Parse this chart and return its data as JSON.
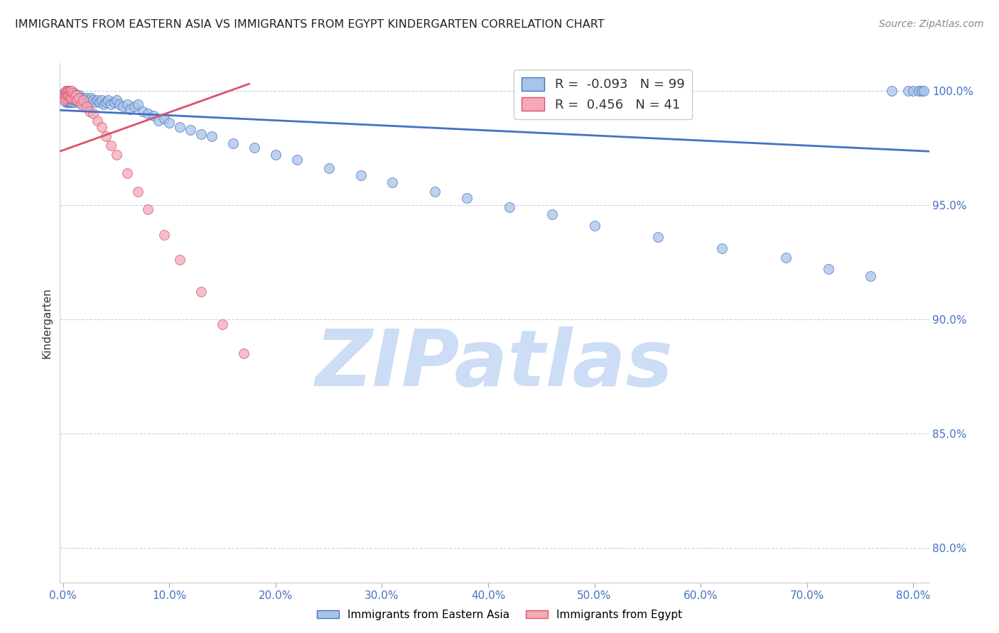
{
  "title": "IMMIGRANTS FROM EASTERN ASIA VS IMMIGRANTS FROM EGYPT KINDERGARTEN CORRELATION CHART",
  "source": "Source: ZipAtlas.com",
  "xlabel_ticks": [
    "0.0%",
    "10.0%",
    "20.0%",
    "30.0%",
    "40.0%",
    "50.0%",
    "60.0%",
    "70.0%",
    "80.0%"
  ],
  "xlabel_vals": [
    0.0,
    0.1,
    0.2,
    0.3,
    0.4,
    0.5,
    0.6,
    0.7,
    0.8
  ],
  "ylabel": "Kindergarten",
  "ylabel_right_ticks": [
    1.0,
    0.95,
    0.9,
    0.85,
    0.8
  ],
  "ylabel_right_labels": [
    "100.0%",
    "95.0%",
    "90.0%",
    "85.0%",
    "80.0%"
  ],
  "ylim": [
    0.785,
    1.012
  ],
  "xlim": [
    -0.003,
    0.815
  ],
  "blue_R": -0.093,
  "blue_N": 99,
  "pink_R": 0.456,
  "pink_N": 41,
  "blue_color": "#a8c4e8",
  "pink_color": "#f4a8b8",
  "blue_line_color": "#4472c4",
  "pink_line_color": "#d9536a",
  "watermark": "ZIPatlas",
  "watermark_color": "#ccddf5",
  "blue_x": [
    0.001,
    0.001,
    0.002,
    0.002,
    0.003,
    0.003,
    0.003,
    0.004,
    0.004,
    0.004,
    0.005,
    0.005,
    0.005,
    0.006,
    0.006,
    0.006,
    0.007,
    0.007,
    0.007,
    0.008,
    0.008,
    0.008,
    0.009,
    0.009,
    0.01,
    0.01,
    0.01,
    0.011,
    0.011,
    0.012,
    0.012,
    0.013,
    0.013,
    0.014,
    0.014,
    0.015,
    0.015,
    0.016,
    0.016,
    0.017,
    0.018,
    0.019,
    0.02,
    0.021,
    0.022,
    0.023,
    0.024,
    0.025,
    0.026,
    0.028,
    0.03,
    0.032,
    0.034,
    0.036,
    0.038,
    0.04,
    0.042,
    0.045,
    0.048,
    0.05,
    0.053,
    0.056,
    0.06,
    0.063,
    0.067,
    0.07,
    0.075,
    0.08,
    0.085,
    0.09,
    0.095,
    0.1,
    0.11,
    0.12,
    0.13,
    0.14,
    0.16,
    0.18,
    0.2,
    0.22,
    0.25,
    0.28,
    0.31,
    0.35,
    0.38,
    0.42,
    0.46,
    0.5,
    0.56,
    0.62,
    0.68,
    0.72,
    0.76,
    0.78,
    0.795,
    0.8,
    0.805,
    0.808,
    0.81
  ],
  "blue_y": [
    0.999,
    0.997,
    0.998,
    0.996,
    0.999,
    0.997,
    0.995,
    0.999,
    0.997,
    0.995,
    0.999,
    0.997,
    0.995,
    0.999,
    0.997,
    0.995,
    0.999,
    0.997,
    0.995,
    0.999,
    0.997,
    0.995,
    0.998,
    0.996,
    0.999,
    0.997,
    0.995,
    0.998,
    0.996,
    0.998,
    0.996,
    0.998,
    0.996,
    0.997,
    0.995,
    0.998,
    0.996,
    0.997,
    0.995,
    0.996,
    0.995,
    0.997,
    0.996,
    0.995,
    0.997,
    0.995,
    0.996,
    0.995,
    0.997,
    0.996,
    0.995,
    0.996,
    0.995,
    0.996,
    0.994,
    0.995,
    0.996,
    0.994,
    0.995,
    0.996,
    0.994,
    0.993,
    0.994,
    0.992,
    0.993,
    0.994,
    0.991,
    0.99,
    0.989,
    0.987,
    0.988,
    0.986,
    0.984,
    0.983,
    0.981,
    0.98,
    0.977,
    0.975,
    0.972,
    0.97,
    0.966,
    0.963,
    0.96,
    0.956,
    0.953,
    0.949,
    0.946,
    0.941,
    0.936,
    0.931,
    0.927,
    0.922,
    0.919,
    1.0,
    1.0,
    1.0,
    1.0,
    1.0,
    1.0
  ],
  "pink_x": [
    0.001,
    0.001,
    0.002,
    0.002,
    0.003,
    0.003,
    0.003,
    0.004,
    0.004,
    0.005,
    0.005,
    0.006,
    0.006,
    0.007,
    0.007,
    0.008,
    0.008,
    0.009,
    0.01,
    0.011,
    0.012,
    0.013,
    0.015,
    0.017,
    0.019,
    0.022,
    0.025,
    0.028,
    0.032,
    0.036,
    0.04,
    0.045,
    0.05,
    0.06,
    0.07,
    0.08,
    0.095,
    0.11,
    0.13,
    0.15,
    0.17
  ],
  "pink_y": [
    0.998,
    0.996,
    0.999,
    0.997,
    1.0,
    0.998,
    1.0,
    1.0,
    0.998,
    1.0,
    0.998,
    1.0,
    0.998,
    1.0,
    0.997,
    1.0,
    0.997,
    0.999,
    0.998,
    0.997,
    0.998,
    0.996,
    0.997,
    0.994,
    0.996,
    0.993,
    0.991,
    0.99,
    0.987,
    0.984,
    0.98,
    0.976,
    0.972,
    0.964,
    0.956,
    0.948,
    0.937,
    0.926,
    0.912,
    0.898,
    0.885
  ],
  "blue_trend_x": [
    -0.003,
    0.815
  ],
  "blue_trend_y": [
    0.9915,
    0.9735
  ],
  "pink_trend_x": [
    -0.003,
    0.175
  ],
  "pink_trend_y": [
    0.9735,
    1.003
  ]
}
